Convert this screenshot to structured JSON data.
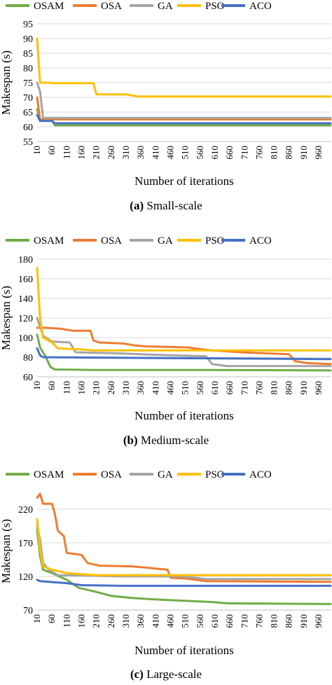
{
  "colors": {
    "OSAM": "#70ad47",
    "OSA": "#ed7d31",
    "GA": "#a5a5a5",
    "PSO": "#ffc000",
    "ACO": "#4472c4",
    "grid": "#d9d9d9"
  },
  "chart_data": [
    {
      "type": "line",
      "ylabel": "Makespan (s)",
      "xlabel": "Number of iterations",
      "caption_letter": "(a)",
      "caption_text": "Small-scale",
      "ylim": [
        55,
        95
      ],
      "yticks": [
        55,
        60,
        65,
        70,
        75,
        80,
        85,
        90,
        95
      ],
      "xlim": [
        10,
        1000
      ],
      "xticks": [
        10,
        60,
        110,
        160,
        210,
        260,
        310,
        360,
        410,
        460,
        510,
        560,
        610,
        660,
        710,
        760,
        810,
        860,
        910,
        960
      ],
      "grid": "horizontal",
      "legend": "top",
      "series": [
        {
          "name": "OSAM",
          "points": [
            [
              10,
              66
            ],
            [
              20,
              62
            ],
            [
              60,
              62
            ],
            [
              70,
              60.5
            ],
            [
              1000,
              60.5
            ]
          ]
        },
        {
          "name": "OSA",
          "points": [
            [
              10,
              70
            ],
            [
              20,
              62.5
            ],
            [
              1000,
              62.5
            ]
          ]
        },
        {
          "name": "GA",
          "points": [
            [
              10,
              75
            ],
            [
              20,
              72
            ],
            [
              30,
              63
            ],
            [
              1000,
              63
            ]
          ]
        },
        {
          "name": "PSO",
          "points": [
            [
              10,
              90
            ],
            [
              20,
              75
            ],
            [
              50,
              75
            ],
            [
              60,
              74.8
            ],
            [
              200,
              74.8
            ],
            [
              210,
              71
            ],
            [
              310,
              71
            ],
            [
              350,
              70.3
            ],
            [
              1000,
              70.3
            ]
          ]
        },
        {
          "name": "ACO",
          "points": [
            [
              10,
              64
            ],
            [
              20,
              62
            ],
            [
              60,
              62
            ],
            [
              70,
              61.2
            ],
            [
              1000,
              61.2
            ]
          ]
        }
      ]
    },
    {
      "type": "line",
      "ylabel": "Makespan (s)",
      "xlabel": "Number of iterations",
      "caption_letter": "(b)",
      "caption_text": "Medium-scale",
      "ylim": [
        60,
        180
      ],
      "yticks": [
        60,
        80,
        100,
        120,
        140,
        160,
        180
      ],
      "xlim": [
        10,
        1000
      ],
      "xticks": [
        10,
        60,
        110,
        160,
        210,
        260,
        310,
        360,
        410,
        460,
        510,
        560,
        610,
        660,
        710,
        760,
        810,
        860,
        910,
        960
      ],
      "grid": "horizontal",
      "legend": "top",
      "series": [
        {
          "name": "OSAM",
          "points": [
            [
              10,
              103
            ],
            [
              20,
              90
            ],
            [
              40,
              80
            ],
            [
              55,
              70
            ],
            [
              70,
              67.5
            ],
            [
              200,
              67
            ],
            [
              400,
              67
            ],
            [
              600,
              67
            ],
            [
              1000,
              66.5
            ]
          ]
        },
        {
          "name": "OSA",
          "points": [
            [
              10,
              110
            ],
            [
              40,
              110
            ],
            [
              90,
              109
            ],
            [
              130,
              107
            ],
            [
              190,
              107
            ],
            [
              200,
              97
            ],
            [
              220,
              95
            ],
            [
              300,
              94
            ],
            [
              340,
              92
            ],
            [
              380,
              91
            ],
            [
              520,
              90
            ],
            [
              540,
              89
            ],
            [
              600,
              87
            ],
            [
              700,
              85
            ],
            [
              860,
              83
            ],
            [
              880,
              76
            ],
            [
              920,
              74
            ],
            [
              1000,
              73
            ]
          ]
        },
        {
          "name": "GA",
          "points": [
            [
              10,
              120
            ],
            [
              30,
              102
            ],
            [
              60,
              96
            ],
            [
              120,
              95
            ],
            [
              140,
              85
            ],
            [
              280,
              84
            ],
            [
              360,
              83
            ],
            [
              460,
              82
            ],
            [
              580,
              81
            ],
            [
              600,
              73
            ],
            [
              650,
              71
            ],
            [
              1000,
              71
            ]
          ]
        },
        {
          "name": "PSO",
          "points": [
            [
              10,
              171
            ],
            [
              20,
              120
            ],
            [
              30,
              100
            ],
            [
              60,
              95
            ],
            [
              80,
              89
            ],
            [
              150,
              88
            ],
            [
              200,
              87
            ],
            [
              1000,
              87
            ]
          ]
        },
        {
          "name": "ACO",
          "points": [
            [
              10,
              89
            ],
            [
              20,
              82
            ],
            [
              30,
              80
            ],
            [
              1000,
              78
            ]
          ]
        }
      ]
    },
    {
      "type": "line",
      "ylabel": "Makespan (s)",
      "xlabel": "Number of iterations",
      "caption_letter": "(c)",
      "caption_text": "Large-scale",
      "ylim": [
        70,
        245
      ],
      "yticks": [
        70,
        120,
        170,
        220
      ],
      "xlim": [
        10,
        1000
      ],
      "xticks": [
        10,
        60,
        110,
        160,
        210,
        260,
        310,
        360,
        410,
        460,
        510,
        560,
        610,
        660,
        710,
        760,
        810,
        860,
        910,
        960
      ],
      "grid": "horizontal",
      "legend": "top",
      "series": [
        {
          "name": "OSAM",
          "points": [
            [
              10,
              190
            ],
            [
              20,
              150
            ],
            [
              30,
              130
            ],
            [
              60,
              125
            ],
            [
              110,
              115
            ],
            [
              150,
              103
            ],
            [
              200,
              98
            ],
            [
              260,
              91
            ],
            [
              330,
              88
            ],
            [
              400,
              86
            ],
            [
              500,
              84
            ],
            [
              600,
              82
            ],
            [
              650,
              80
            ],
            [
              1000,
              79
            ]
          ]
        },
        {
          "name": "OSA",
          "points": [
            [
              10,
              237
            ],
            [
              20,
              243
            ],
            [
              30,
              228
            ],
            [
              60,
              228
            ],
            [
              70,
              213
            ],
            [
              80,
              188
            ],
            [
              100,
              180
            ],
            [
              110,
              155
            ],
            [
              160,
              152
            ],
            [
              180,
              140
            ],
            [
              220,
              136
            ],
            [
              330,
              135
            ],
            [
              380,
              133
            ],
            [
              450,
              130
            ],
            [
              460,
              118
            ],
            [
              510,
              117
            ],
            [
              580,
              113
            ],
            [
              1000,
              112
            ]
          ]
        },
        {
          "name": "GA",
          "points": [
            [
              10,
              195
            ],
            [
              20,
              175
            ],
            [
              30,
              140
            ],
            [
              50,
              130
            ],
            [
              80,
              122
            ],
            [
              200,
              121
            ],
            [
              300,
              120
            ],
            [
              500,
              120
            ],
            [
              580,
              116
            ],
            [
              1000,
              116
            ]
          ]
        },
        {
          "name": "PSO",
          "points": [
            [
              10,
              205
            ],
            [
              20,
              160
            ],
            [
              30,
              135
            ],
            [
              60,
              130
            ],
            [
              110,
              125
            ],
            [
              200,
              122
            ],
            [
              1000,
              122
            ]
          ]
        },
        {
          "name": "ACO",
          "points": [
            [
              10,
              115
            ],
            [
              20,
              113
            ],
            [
              110,
              110
            ],
            [
              160,
              107
            ],
            [
              300,
              106
            ],
            [
              1000,
              106
            ]
          ]
        }
      ]
    }
  ]
}
